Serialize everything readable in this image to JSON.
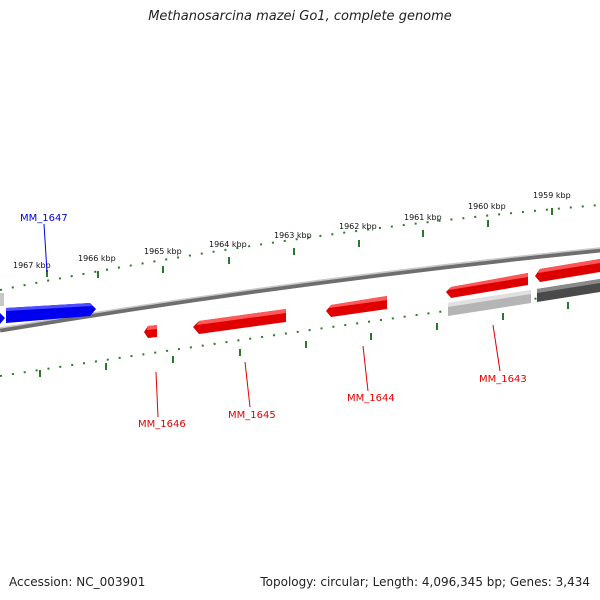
{
  "title": "Methanosarcina mazei Go1, complete genome",
  "footer": {
    "accession": "Accession: NC_003901",
    "summary": "Topology: circular; Length: 4,096,345 bp; Genes: 3,434"
  },
  "colors": {
    "forward_gene": "#0000ff",
    "reverse_gene": "#ee0000",
    "grey_gene": "#bdbdbd",
    "dark_gene": "#555555",
    "backbone": "#777777",
    "ticks": "#2a7a2a"
  },
  "ticks": [
    {
      "label": "1967 kbp"
    },
    {
      "label": "1966 kbp"
    },
    {
      "label": "1965 kbp"
    },
    {
      "label": "1964 kbp"
    },
    {
      "label": "1963 kbp"
    },
    {
      "label": "1962 kbp"
    },
    {
      "label": "1961 kbp"
    },
    {
      "label": "1960 kbp"
    },
    {
      "label": "1959 kbp"
    }
  ],
  "gene_labels": [
    {
      "label": "MM_1647",
      "strand": "forward"
    },
    {
      "label": "MM_1646",
      "strand": "reverse"
    },
    {
      "label": "MM_1645",
      "strand": "reverse"
    },
    {
      "label": "MM_1644",
      "strand": "reverse"
    },
    {
      "label": "MM_1643",
      "strand": "reverse"
    }
  ]
}
